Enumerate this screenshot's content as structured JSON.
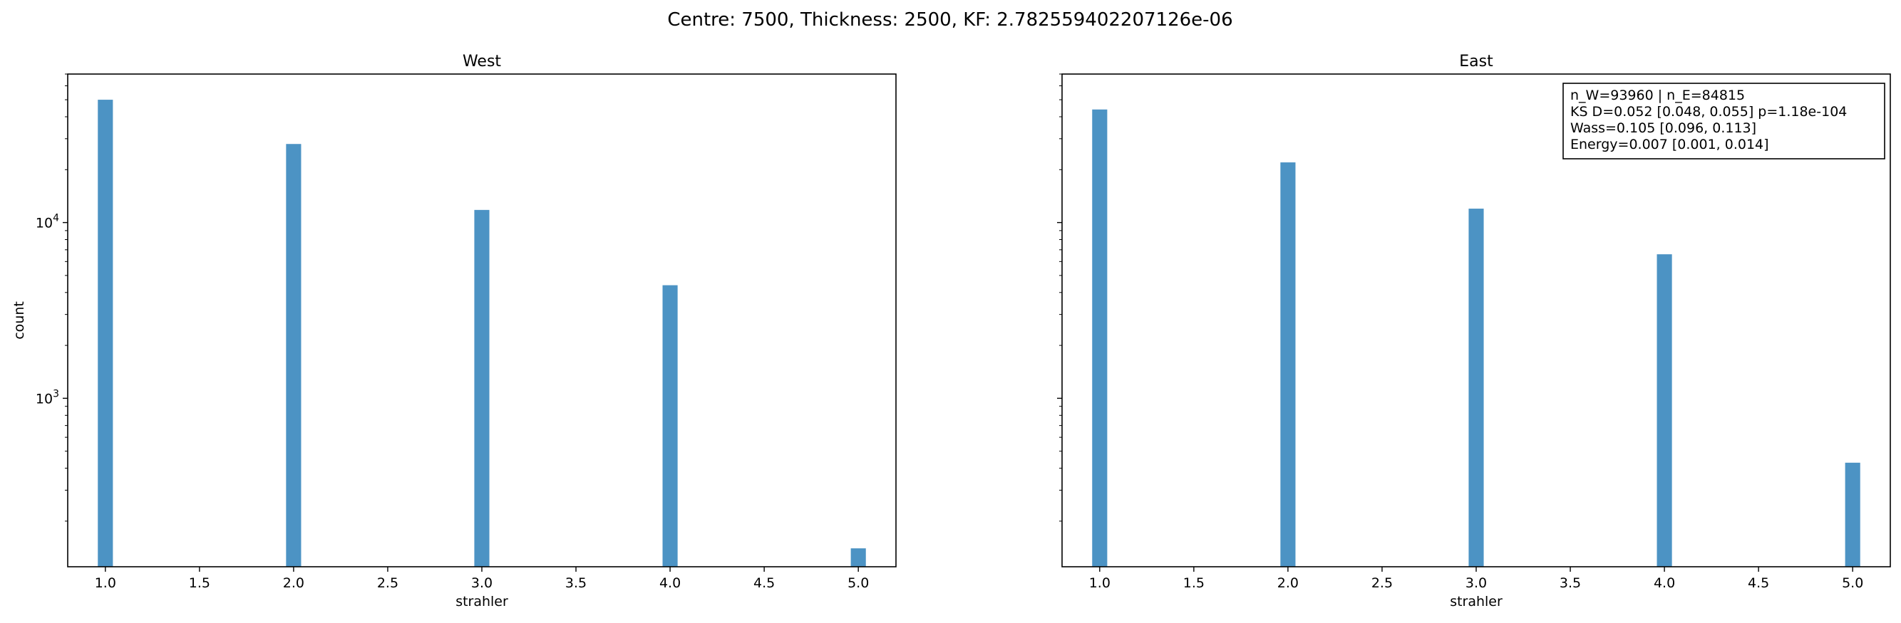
{
  "suptitle": "Centre: 7500, Thickness: 2500, KF: 2.782559402207126e-06",
  "colors": {
    "bar": "#4c93c4",
    "axis": "#000000",
    "background": "#ffffff"
  },
  "chart_data": [
    {
      "type": "bar",
      "title": "West",
      "xlabel": "strahler",
      "ylabel": "count",
      "yscale": "log",
      "xlim": [
        0.8,
        5.2
      ],
      "ylim": [
        110,
        70000
      ],
      "xticks": [
        "1.0",
        "1.5",
        "2.0",
        "2.5",
        "3.0",
        "3.5",
        "4.0",
        "4.5",
        "5.0"
      ],
      "xtick_values": [
        1.0,
        1.5,
        2.0,
        2.5,
        3.0,
        3.5,
        4.0,
        4.5,
        5.0
      ],
      "ytick_values": [
        1000,
        10000
      ],
      "bar_width": 0.08,
      "x": [
        1,
        2,
        3,
        4,
        5
      ],
      "values": [
        50000,
        28000,
        11800,
        4400,
        140
      ]
    },
    {
      "type": "bar",
      "title": "East",
      "xlabel": "strahler",
      "ylabel": "",
      "yscale": "log",
      "xlim": [
        0.8,
        5.2
      ],
      "ylim": [
        110,
        70000
      ],
      "xticks": [
        "1.0",
        "1.5",
        "2.0",
        "2.5",
        "3.0",
        "3.5",
        "4.0",
        "4.5",
        "5.0"
      ],
      "xtick_values": [
        1.0,
        1.5,
        2.0,
        2.5,
        3.0,
        3.5,
        4.0,
        4.5,
        5.0
      ],
      "ytick_values": [],
      "bar_width": 0.08,
      "x": [
        1,
        2,
        3,
        4,
        5
      ],
      "values": [
        44000,
        22000,
        12000,
        6600,
        430
      ],
      "annotation": [
        "n_W=93960 | n_E=84815",
        "KS D=0.052 [0.048, 0.055]  p=1.18e-104",
        "Wass=0.105 [0.096, 0.113]",
        "Energy=0.007 [0.001, 0.014]"
      ]
    }
  ]
}
